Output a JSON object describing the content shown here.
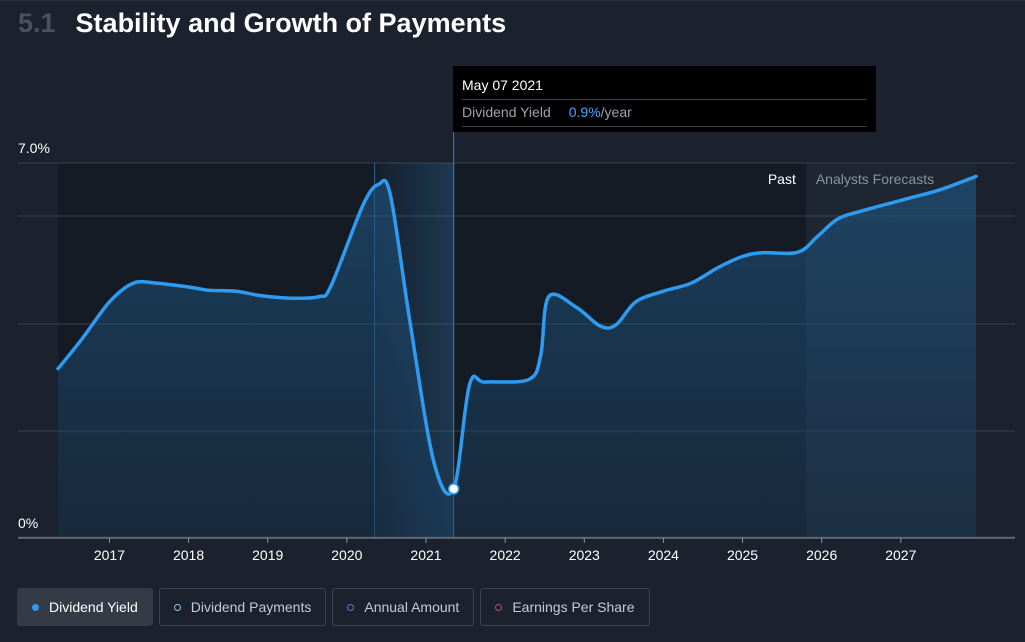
{
  "header": {
    "number": "5.1",
    "title": "Stability and Growth of Payments"
  },
  "tooltip": {
    "date": "May 07 2021",
    "label": "Dividend Yield",
    "value": "0.9%",
    "unit": "/year"
  },
  "legend": [
    {
      "label": "Dividend Yield",
      "color": "#2e9bf0",
      "active": true
    },
    {
      "label": "Dividend Payments",
      "color": "#8fc4ee",
      "active": false
    },
    {
      "label": "Annual Amount",
      "color": "#9b59d0",
      "active": false
    },
    {
      "label": "Earnings Per Share",
      "color": "#b94a6a",
      "active": false
    }
  ],
  "chart_data": {
    "type": "area",
    "series": [
      {
        "name": "Dividend Yield",
        "x": [
          2016.35,
          2016.65,
          2017.0,
          2017.3,
          2017.6,
          2018.0,
          2018.25,
          2018.6,
          2018.9,
          2019.3,
          2019.65,
          2019.8,
          2020.2,
          2020.4,
          2020.55,
          2020.8,
          2021.1,
          2021.35,
          2021.55,
          2021.75,
          2022.3,
          2022.45,
          2022.55,
          2022.9,
          2023.2,
          2023.4,
          2023.65,
          2024.0,
          2024.35,
          2024.7,
          2025.0,
          2025.25,
          2025.7,
          2025.95,
          2026.2,
          2026.5,
          2027.0,
          2027.5,
          2027.95
        ],
        "y": [
          3.15,
          3.7,
          4.4,
          4.75,
          4.75,
          4.68,
          4.62,
          4.6,
          4.52,
          4.47,
          4.5,
          4.7,
          6.2,
          6.6,
          6.4,
          4.0,
          1.4,
          0.9,
          2.85,
          2.9,
          2.95,
          3.4,
          4.5,
          4.3,
          3.95,
          3.97,
          4.4,
          4.6,
          4.75,
          5.05,
          5.25,
          5.32,
          5.33,
          5.63,
          5.95,
          6.1,
          6.3,
          6.5,
          6.75
        ]
      }
    ],
    "x_ticks": [
      "2017",
      "2018",
      "2019",
      "2020",
      "2021",
      "2022",
      "2023",
      "2024",
      "2025",
      "2026",
      "2027"
    ],
    "y_tick_labels": [
      "0%",
      "7.0%"
    ],
    "ylim": [
      0,
      7.0
    ],
    "xlim": [
      2016.35,
      2027.95
    ],
    "highlight_range": [
      2020.35,
      2021.35
    ],
    "selected_point": {
      "x": 2021.35,
      "y": 0.9
    },
    "forecast_start": 2025.8,
    "past_label": "Past",
    "forecast_label": "Analysts Forecasts",
    "grid": true
  }
}
